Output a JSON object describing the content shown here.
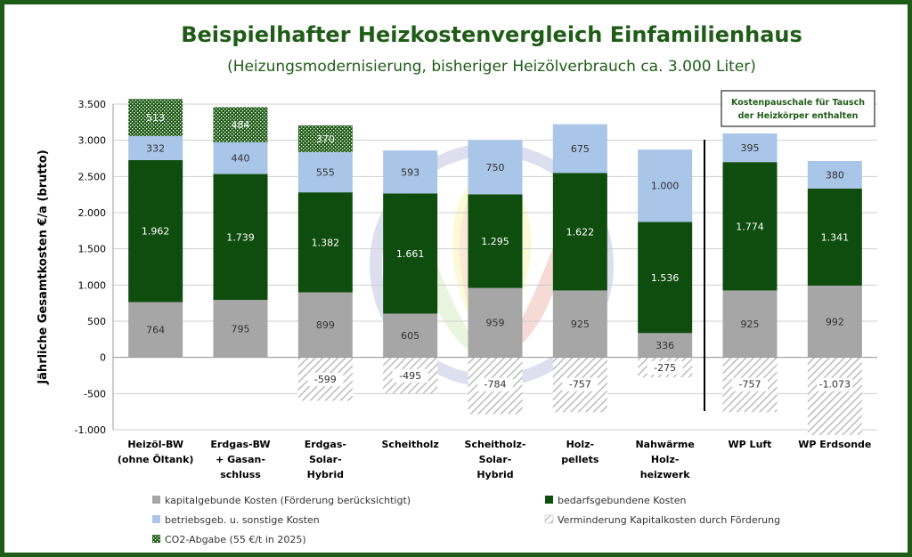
{
  "chart_data": {
    "type": "bar",
    "stacked": true,
    "title": "Beispielhafter Heizkostenvergleich Einfamilienhaus",
    "subtitle": "(Heizungsmodernisierung, bisheriger Heizölverbrauch ca. 3.000 Liter)",
    "ylabel": "Jährliche Gesamtkosten €/a (brutto)",
    "xlabel": "",
    "ylim": [
      -1000,
      3500
    ],
    "grid": true,
    "yticks": [
      {
        "value": 3500,
        "label": "3.500"
      },
      {
        "value": 3000,
        "label": "3.000"
      },
      {
        "value": 2500,
        "label": "2.500"
      },
      {
        "value": 2000,
        "label": "2.000"
      },
      {
        "value": 1500,
        "label": "1.500"
      },
      {
        "value": 1000,
        "label": "1.000"
      },
      {
        "value": 500,
        "label": "500"
      },
      {
        "value": 0,
        "label": "0"
      },
      {
        "value": -500,
        "label": "-500"
      },
      {
        "value": -1000,
        "label": "-1.000"
      }
    ],
    "categories": [
      [
        "Heizöl-BW",
        "(ohne Öltank)"
      ],
      [
        "Erdgas-BW",
        "+ Gasan-",
        "schluss"
      ],
      [
        "Erdgas-",
        "Solar-",
        "Hybrid"
      ],
      [
        "Scheitholz"
      ],
      [
        "Scheitholz-",
        "Solar-",
        "Hybrid"
      ],
      [
        "Holz-",
        "pellets"
      ],
      [
        "Nahwärme",
        "Holz-",
        "heizwerk"
      ],
      [
        "WP Luft"
      ],
      [
        "WP Erdsonde"
      ]
    ],
    "series": [
      {
        "name": "kapitalgebunde Kosten (Förderung berücksichtigt)",
        "key": "kapital",
        "color": "#a6a6a6",
        "values": [
          764,
          795,
          899,
          605,
          959,
          925,
          336,
          925,
          992
        ],
        "labels": [
          "764",
          "795",
          "899",
          "605",
          "959",
          "925",
          "336",
          "925",
          "992"
        ]
      },
      {
        "name": "bedarfsgebundene Kosten",
        "key": "bedarf",
        "color": "#0f4d0f",
        "values": [
          1962,
          1739,
          1382,
          1661,
          1295,
          1622,
          1536,
          1774,
          1341
        ],
        "labels": [
          "1.962",
          "1.739",
          "1.382",
          "1.661",
          "1.295",
          "1.622",
          "1.536",
          "1.774",
          "1.341"
        ]
      },
      {
        "name": "betriebsgeb. u. sonstige Kosten",
        "key": "betrieb",
        "color": "#a9c5e8",
        "values": [
          332,
          440,
          555,
          593,
          750,
          675,
          1000,
          395,
          380
        ],
        "labels": [
          "332",
          "440",
          "555",
          "593",
          "750",
          "675",
          "1.000",
          "395",
          "380"
        ]
      },
      {
        "name": "CO2-Abgabe (55 €/t in 2025)",
        "key": "co2",
        "color": "#1f5c17",
        "values": [
          513,
          484,
          370,
          null,
          null,
          null,
          null,
          null,
          null
        ],
        "labels": [
          "513",
          "484",
          "370",
          null,
          null,
          null,
          null,
          null,
          null
        ]
      },
      {
        "name": "Verminderung Kapitalkosten durch Förderung",
        "key": "foerderung",
        "color": "#bfbfbf",
        "values": [
          null,
          null,
          -599,
          -495,
          -784,
          -757,
          -275,
          -757,
          -1073
        ],
        "labels": [
          null,
          null,
          "-599",
          "-495",
          "-784",
          "-757",
          "-275",
          "-757",
          "-1.073"
        ]
      }
    ],
    "legend": {
      "placement": "bottom",
      "order": [
        "kapital",
        "bedarf",
        "betrieb",
        "foerderung",
        "co2"
      ]
    },
    "annotations": [
      {
        "text_lines": [
          "Kostenpauschale  für Tausch",
          "der Heizkörper enthalten"
        ],
        "placement": "top-right"
      }
    ]
  }
}
